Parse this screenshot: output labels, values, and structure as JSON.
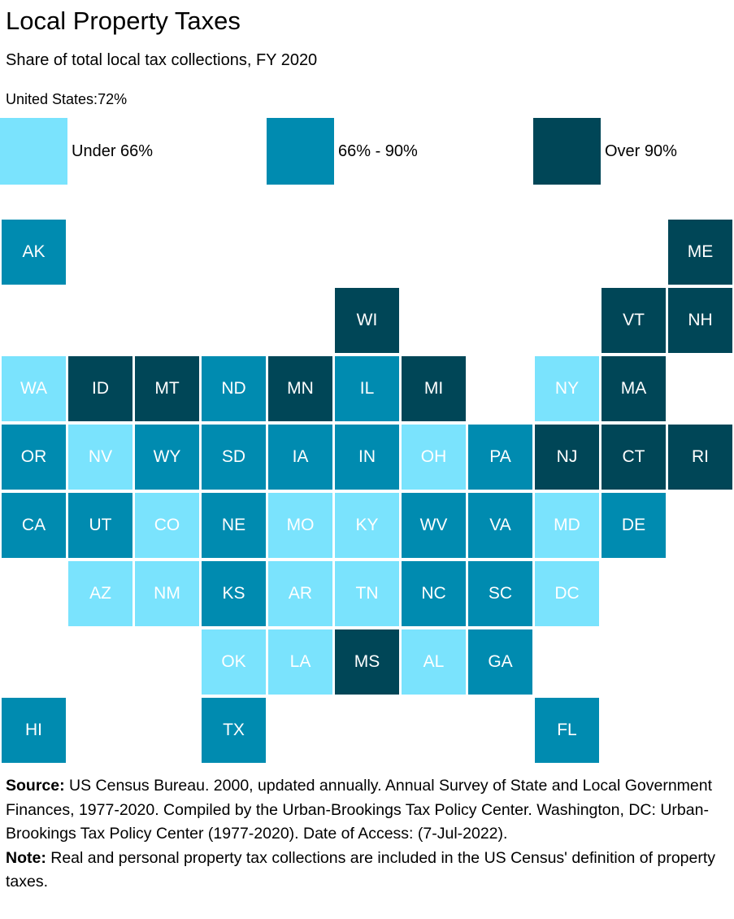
{
  "header": {
    "title": "Local Property Taxes",
    "subtitle": "Share of total local tax collections, FY 2020",
    "us_value_label": "United States:72%"
  },
  "legend": [
    {
      "label": "Under 66%",
      "bin": "low",
      "color": "#7ae3fd"
    },
    {
      "label": "66% - 90%",
      "bin": "mid",
      "color": "#008bb0"
    },
    {
      "label": "Over 90%",
      "bin": "high",
      "color": "#004657"
    }
  ],
  "chart_data": {
    "type": "tile-grid-map",
    "title": "Local Property Taxes",
    "subtitle": "Share of total local tax collections, FY 2020",
    "national_value": "72%",
    "bins": [
      "Under 66%",
      "66% - 90%",
      "Over 90%"
    ],
    "states": [
      {
        "abbr": "AK",
        "row": 0,
        "col": 0,
        "bin": "66% - 90%"
      },
      {
        "abbr": "ME",
        "row": 0,
        "col": 10,
        "bin": "Over 90%"
      },
      {
        "abbr": "WI",
        "row": 1,
        "col": 5,
        "bin": "Over 90%"
      },
      {
        "abbr": "VT",
        "row": 1,
        "col": 9,
        "bin": "Over 90%"
      },
      {
        "abbr": "NH",
        "row": 1,
        "col": 10,
        "bin": "Over 90%"
      },
      {
        "abbr": "WA",
        "row": 2,
        "col": 0,
        "bin": "Under 66%"
      },
      {
        "abbr": "ID",
        "row": 2,
        "col": 1,
        "bin": "Over 90%"
      },
      {
        "abbr": "MT",
        "row": 2,
        "col": 2,
        "bin": "Over 90%"
      },
      {
        "abbr": "ND",
        "row": 2,
        "col": 3,
        "bin": "66% - 90%"
      },
      {
        "abbr": "MN",
        "row": 2,
        "col": 4,
        "bin": "Over 90%"
      },
      {
        "abbr": "IL",
        "row": 2,
        "col": 5,
        "bin": "66% - 90%"
      },
      {
        "abbr": "MI",
        "row": 2,
        "col": 6,
        "bin": "Over 90%"
      },
      {
        "abbr": "NY",
        "row": 2,
        "col": 8,
        "bin": "Under 66%"
      },
      {
        "abbr": "MA",
        "row": 2,
        "col": 9,
        "bin": "Over 90%"
      },
      {
        "abbr": "OR",
        "row": 3,
        "col": 0,
        "bin": "66% - 90%"
      },
      {
        "abbr": "NV",
        "row": 3,
        "col": 1,
        "bin": "Under 66%"
      },
      {
        "abbr": "WY",
        "row": 3,
        "col": 2,
        "bin": "66% - 90%"
      },
      {
        "abbr": "SD",
        "row": 3,
        "col": 3,
        "bin": "66% - 90%"
      },
      {
        "abbr": "IA",
        "row": 3,
        "col": 4,
        "bin": "66% - 90%"
      },
      {
        "abbr": "IN",
        "row": 3,
        "col": 5,
        "bin": "66% - 90%"
      },
      {
        "abbr": "OH",
        "row": 3,
        "col": 6,
        "bin": "Under 66%"
      },
      {
        "abbr": "PA",
        "row": 3,
        "col": 7,
        "bin": "66% - 90%"
      },
      {
        "abbr": "NJ",
        "row": 3,
        "col": 8,
        "bin": "Over 90%"
      },
      {
        "abbr": "CT",
        "row": 3,
        "col": 9,
        "bin": "Over 90%"
      },
      {
        "abbr": "RI",
        "row": 3,
        "col": 10,
        "bin": "Over 90%"
      },
      {
        "abbr": "CA",
        "row": 4,
        "col": 0,
        "bin": "66% - 90%"
      },
      {
        "abbr": "UT",
        "row": 4,
        "col": 1,
        "bin": "66% - 90%"
      },
      {
        "abbr": "CO",
        "row": 4,
        "col": 2,
        "bin": "Under 66%"
      },
      {
        "abbr": "NE",
        "row": 4,
        "col": 3,
        "bin": "66% - 90%"
      },
      {
        "abbr": "MO",
        "row": 4,
        "col": 4,
        "bin": "Under 66%"
      },
      {
        "abbr": "KY",
        "row": 4,
        "col": 5,
        "bin": "Under 66%"
      },
      {
        "abbr": "WV",
        "row": 4,
        "col": 6,
        "bin": "66% - 90%"
      },
      {
        "abbr": "VA",
        "row": 4,
        "col": 7,
        "bin": "66% - 90%"
      },
      {
        "abbr": "MD",
        "row": 4,
        "col": 8,
        "bin": "Under 66%"
      },
      {
        "abbr": "DE",
        "row": 4,
        "col": 9,
        "bin": "66% - 90%"
      },
      {
        "abbr": "AZ",
        "row": 5,
        "col": 1,
        "bin": "Under 66%"
      },
      {
        "abbr": "NM",
        "row": 5,
        "col": 2,
        "bin": "Under 66%"
      },
      {
        "abbr": "KS",
        "row": 5,
        "col": 3,
        "bin": "66% - 90%"
      },
      {
        "abbr": "AR",
        "row": 5,
        "col": 4,
        "bin": "Under 66%"
      },
      {
        "abbr": "TN",
        "row": 5,
        "col": 5,
        "bin": "Under 66%"
      },
      {
        "abbr": "NC",
        "row": 5,
        "col": 6,
        "bin": "66% - 90%"
      },
      {
        "abbr": "SC",
        "row": 5,
        "col": 7,
        "bin": "66% - 90%"
      },
      {
        "abbr": "DC",
        "row": 5,
        "col": 8,
        "bin": "Under 66%"
      },
      {
        "abbr": "OK",
        "row": 6,
        "col": 3,
        "bin": "Under 66%"
      },
      {
        "abbr": "LA",
        "row": 6,
        "col": 4,
        "bin": "Under 66%"
      },
      {
        "abbr": "MS",
        "row": 6,
        "col": 5,
        "bin": "Over 90%"
      },
      {
        "abbr": "AL",
        "row": 6,
        "col": 6,
        "bin": "Under 66%"
      },
      {
        "abbr": "GA",
        "row": 6,
        "col": 7,
        "bin": "66% - 90%"
      },
      {
        "abbr": "HI",
        "row": 7,
        "col": 0,
        "bin": "66% - 90%"
      },
      {
        "abbr": "TX",
        "row": 7,
        "col": 3,
        "bin": "66% - 90%"
      },
      {
        "abbr": "FL",
        "row": 7,
        "col": 8,
        "bin": "66% - 90%"
      }
    ]
  },
  "footer": {
    "source_label": "Source:",
    "source_text": " US Census Bureau. 2000, updated annually. Annual Survey of State and Local Government Finances, 1977-2020. Compiled by the Urban-Brookings Tax Policy Center. Washington, DC: Urban-Brookings Tax Policy Center (1977-2020). Date of Access: (7-Jul-2022).",
    "note_label": "Note:",
    "note_text": " Real and personal property tax collections are included in the US Census' definition of property taxes."
  }
}
